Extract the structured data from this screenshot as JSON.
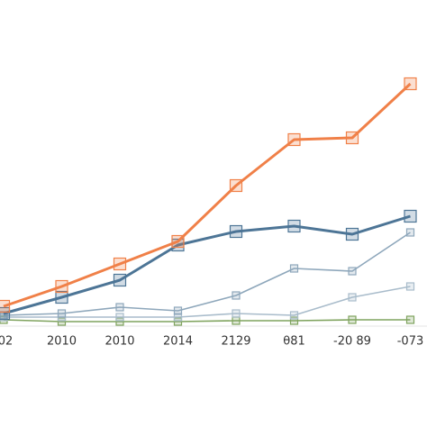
{
  "chart_data": {
    "type": "line",
    "categories": [
      "02",
      "2010",
      "2010",
      "2014",
      "2129",
      "θ81",
      "-20 89",
      "-073"
    ],
    "series": [
      {
        "color": "#f08048",
        "values": [
          20,
          42,
          67,
          92,
          154,
          205,
          207,
          267
        ]
      },
      {
        "color": "#4d7596",
        "values": [
          12,
          30,
          49,
          88,
          103,
          109,
          100,
          120
        ]
      },
      {
        "color": "#8ea7bb",
        "values": [
          10,
          12,
          19,
          15,
          32,
          62,
          59,
          102
        ]
      },
      {
        "color": "#a9bccb",
        "values": [
          8,
          8,
          8,
          8,
          12,
          10,
          30,
          42
        ]
      },
      {
        "color": "#7fa35e",
        "values": [
          5,
          3,
          3,
          3,
          4,
          4,
          5,
          5
        ]
      }
    ],
    "ylim": [
      0,
      320
    ]
  }
}
